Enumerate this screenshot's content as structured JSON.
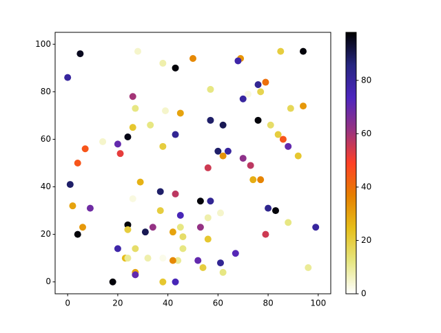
{
  "chart_data": {
    "type": "scatter",
    "x": [
      0,
      5,
      28,
      38,
      43,
      50,
      69,
      68,
      85,
      94,
      26,
      57,
      70,
      72,
      76,
      79,
      77,
      27,
      39,
      45,
      57,
      62,
      76,
      81,
      89,
      94,
      33,
      26,
      24,
      43,
      14,
      20,
      38,
      7,
      21,
      60,
      64,
      62,
      84,
      86,
      88,
      92,
      70,
      73,
      4,
      56,
      74,
      77,
      1,
      29,
      37,
      43,
      26,
      2,
      9,
      53,
      57,
      80,
      83,
      37,
      45,
      61,
      56,
      88,
      24,
      45,
      34,
      53,
      99,
      24,
      6,
      31,
      42,
      4,
      79,
      46,
      56,
      20,
      27,
      46,
      67,
      23,
      24,
      32,
      38,
      44,
      42,
      52,
      61,
      54,
      96,
      27,
      27,
      62,
      18,
      38,
      43
    ],
    "y": [
      86,
      96,
      97,
      92,
      90,
      94,
      94,
      93,
      97,
      97,
      78,
      81,
      77,
      79,
      83,
      84,
      80,
      73,
      72,
      71,
      68,
      66,
      68,
      66,
      73,
      74,
      66,
      65,
      61,
      62,
      59,
      58,
      57,
      56,
      54,
      55,
      55,
      53,
      62,
      60,
      57,
      53,
      52,
      49,
      50,
      48,
      43,
      43,
      41,
      42,
      38,
      37,
      35,
      32,
      31,
      34,
      34,
      31,
      30,
      30,
      28,
      29,
      27,
      25,
      24,
      23,
      23,
      23,
      23,
      22,
      23,
      21,
      21,
      20,
      20,
      19,
      18,
      14,
      14,
      14,
      12,
      10,
      10,
      10,
      10,
      9,
      9,
      9,
      8,
      6,
      6,
      4,
      3,
      4,
      0,
      0,
      0
    ],
    "c": [
      80,
      95,
      5,
      8,
      97,
      35,
      33,
      78,
      20,
      97,
      60,
      12,
      80,
      3,
      82,
      40,
      18,
      12,
      5,
      30,
      88,
      90,
      97,
      15,
      17,
      32,
      12,
      22,
      96,
      82,
      5,
      70,
      20,
      45,
      52,
      88,
      80,
      33,
      20,
      45,
      70,
      22,
      63,
      57,
      45,
      55,
      28,
      36,
      88,
      27,
      88,
      57,
      3,
      30,
      68,
      97,
      82,
      83,
      97,
      20,
      75,
      5,
      8,
      12,
      97,
      12,
      62,
      62,
      80,
      20,
      32,
      90,
      30,
      97,
      55,
      15,
      22,
      78,
      15,
      12,
      72,
      25,
      10,
      8,
      2,
      10,
      35,
      70,
      82,
      20,
      10,
      30,
      70,
      12,
      97,
      22,
      75
    ],
    "colormap": [
      "#ffffff",
      "#e6e680",
      "#e6bf1a",
      "#e68000",
      "#ff4026",
      "#993380",
      "#4d26bf",
      "#262680",
      "#000000"
    ],
    "clim": [
      0,
      98
    ],
    "cticks": [
      0,
      20,
      40,
      60,
      80
    ],
    "xlim": [
      -5,
      105
    ],
    "ylim": [
      -5,
      105
    ],
    "xticks": [
      0,
      20,
      40,
      60,
      80,
      100
    ],
    "yticks": [
      0,
      20,
      40,
      60,
      80,
      100
    ]
  }
}
